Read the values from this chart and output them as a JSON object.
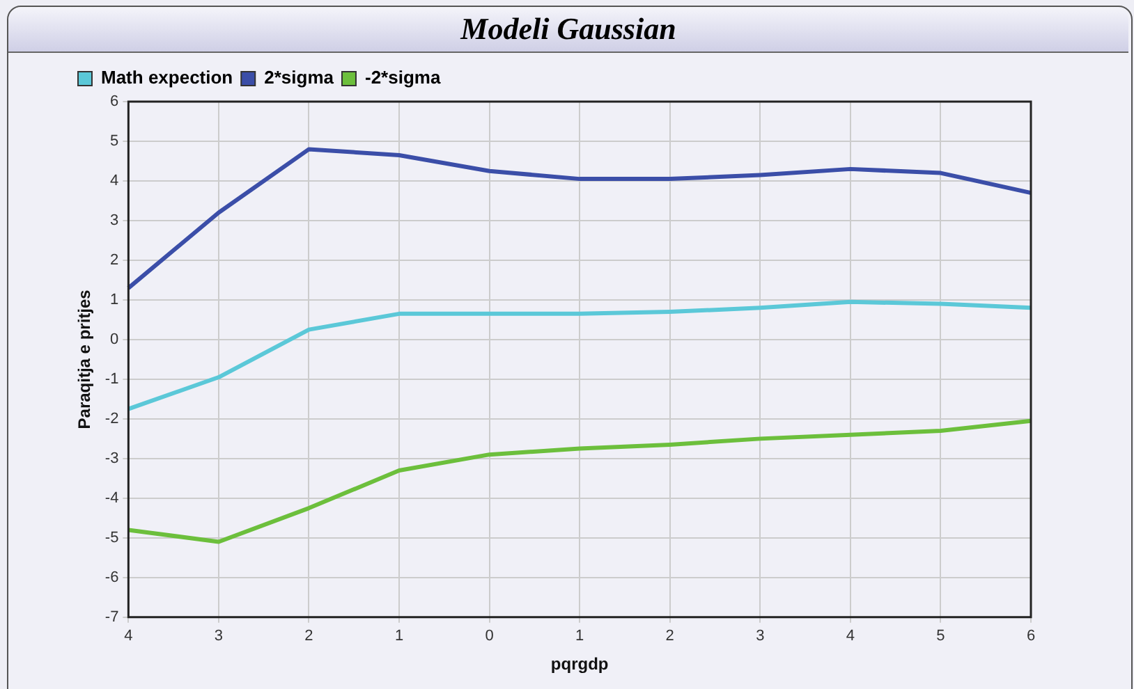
{
  "chart_data": {
    "type": "line",
    "title": "Modeli Gaussian",
    "xlabel": "pqrgdp",
    "ylabel": "Paraqitja e pritjes",
    "categories": [
      "4",
      "3",
      "2",
      "1",
      "0",
      "1",
      "2",
      "3",
      "4",
      "5",
      "6"
    ],
    "series": [
      {
        "name": "Math expection",
        "color": "#5bc8d8",
        "values": [
          -1.75,
          -0.95,
          0.25,
          0.65,
          0.65,
          0.65,
          0.7,
          0.8,
          0.95,
          0.9,
          0.8
        ]
      },
      {
        "name": "2*sigma",
        "color": "#3b4ea8",
        "values": [
          1.3,
          3.2,
          4.8,
          4.65,
          4.25,
          4.05,
          4.05,
          4.15,
          4.3,
          4.2,
          3.7
        ]
      },
      {
        "name": "-2*sigma",
        "color": "#6cbf3c",
        "values": [
          -4.8,
          -5.1,
          -4.25,
          -3.3,
          -2.9,
          -2.75,
          -2.65,
          -2.5,
          -2.4,
          -2.3,
          -2.05
        ]
      }
    ],
    "ylim": [
      -7,
      6
    ],
    "yticks": [
      -7,
      -6,
      -5,
      -4,
      -3,
      -2,
      -1,
      0,
      1,
      2,
      3,
      4,
      5,
      6
    ],
    "grid": true,
    "legend": "top left",
    "marker": "none",
    "line_style": "solid"
  }
}
